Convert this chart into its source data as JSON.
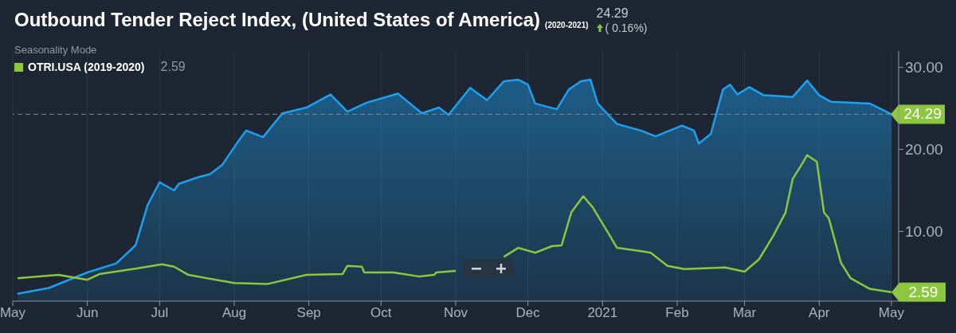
{
  "chart_data": {
    "type": "line",
    "title": "Outbound Tender Reject Index, (United States of America)",
    "subtitle": "Seasonality Mode",
    "annotations": [
      "(2020-2021)",
      "24.29",
      "( 0.16%)",
      "2.59",
      {
        "text": "2.59",
        "x": "2021-05-01",
        "y": 2.59
      }
    ],
    "xlim": [
      "2020-05-01",
      "2021-05-04"
    ],
    "xticks": [
      {
        "value": "2020-05-01",
        "label": "May"
      },
      {
        "value": "2020-06-01",
        "label": "Jun"
      },
      {
        "value": "2020-07-01",
        "label": "Jul"
      },
      {
        "value": "2020-08-01",
        "label": "Aug"
      },
      {
        "value": "2020-09-01",
        "label": "Sep"
      },
      {
        "value": "2020-10-01",
        "label": "Oct"
      },
      {
        "value": "2020-11-01",
        "label": "Nov"
      },
      {
        "value": "2020-12-01",
        "label": "Dec"
      },
      {
        "value": "2021-01-01",
        "label": "2021"
      },
      {
        "value": "2021-02-01",
        "label": "Feb"
      },
      {
        "value": "2021-03-01",
        "label": "Mar"
      },
      {
        "value": "2021-04-01",
        "label": "Apr"
      },
      {
        "value": "2021-05-01",
        "label": "May"
      }
    ],
    "ylim": [
      1.5,
      32
    ],
    "yticks": [
      {
        "value": 10,
        "label": "10.00"
      },
      {
        "value": 20,
        "label": "20.00"
      },
      {
        "value": 30,
        "label": "30.00"
      }
    ],
    "grid": "x",
    "legend": "top left",
    "marker": "none",
    "line_style": "solid",
    "ref_lines": [
      {
        "axis": "y",
        "value": 24.29,
        "label": "24.29",
        "color": "#7d8a96",
        "line_style": "dashed"
      }
    ],
    "series": [
      {
        "type": "area",
        "color": "#1ea0f0",
        "x": [
          "2020-05-03",
          "2020-05-16",
          "2020-06-01",
          "2020-06-13",
          "2020-06-21",
          "2020-06-26",
          "2020-07-01",
          "2020-07-07",
          "2020-07-09",
          "2020-07-17",
          "2020-07-22",
          "2020-07-27",
          "2020-08-02",
          "2020-08-06",
          "2020-08-13",
          "2020-08-21",
          "2020-08-31",
          "2020-09-10",
          "2020-09-17",
          "2020-09-25",
          "2020-10-08",
          "2020-10-18",
          "2020-10-25",
          "2020-10-29",
          "2020-11-07",
          "2020-11-14",
          "2020-11-21",
          "2020-11-27",
          "2020-12-01",
          "2020-12-04",
          "2020-12-13",
          "2020-12-18",
          "2020-12-23",
          "2020-12-27",
          "2020-12-30",
          "2021-01-07",
          "2021-01-17",
          "2021-01-23",
          "2021-02-03",
          "2021-02-08",
          "2021-02-10",
          "2021-02-15",
          "2021-02-20",
          "2021-02-23",
          "2021-02-26",
          "2021-03-03",
          "2021-03-09",
          "2021-03-21",
          "2021-03-27",
          "2021-04-01",
          "2021-04-06",
          "2021-04-22",
          "2021-05-01"
        ],
        "values": [
          2.4,
          3.1,
          5.0,
          6.1,
          8.3,
          13.2,
          16.0,
          15.0,
          15.8,
          16.6,
          17.0,
          18.1,
          20.7,
          22.3,
          21.5,
          24.4,
          25.1,
          26.7,
          24.6,
          25.7,
          26.8,
          24.4,
          25.1,
          24.2,
          27.5,
          26.0,
          28.3,
          28.5,
          27.9,
          25.6,
          24.9,
          27.3,
          28.3,
          28.5,
          25.6,
          23.1,
          22.3,
          21.6,
          22.9,
          22.3,
          20.7,
          21.9,
          27.3,
          27.9,
          26.7,
          27.6,
          26.6,
          26.4,
          28.4,
          26.6,
          25.8,
          25.6,
          24.29
        ]
      },
      {
        "type": "line",
        "name": "OTRI.USA (2019-2020)",
        "color": "#8dc63f",
        "x": [
          "2020-05-03",
          "2020-05-20",
          "2020-06-01",
          "2020-06-06",
          "2020-06-22",
          "2020-07-02",
          "2020-07-07",
          "2020-07-13",
          "2020-08-01",
          "2020-08-15",
          "2020-08-31",
          "2020-09-15",
          "2020-09-17",
          "2020-09-23",
          "2020-09-24",
          "2020-10-06",
          "2020-10-17",
          "2020-10-23",
          "2020-10-24",
          "2020-11-01",
          "2020-11-10",
          "2020-11-21",
          "2020-11-27",
          "2020-12-04",
          "2020-12-11",
          "2020-12-15",
          "2020-12-19",
          "2020-12-24",
          "2020-12-28",
          "2021-01-04",
          "2021-01-07",
          "2021-01-17",
          "2021-01-21",
          "2021-01-28",
          "2021-02-04",
          "2021-02-21",
          "2021-03-01",
          "2021-03-07",
          "2021-03-13",
          "2021-03-18",
          "2021-03-21",
          "2021-03-25",
          "2021-03-27",
          "2021-03-31",
          "2021-04-03",
          "2021-04-05",
          "2021-04-10",
          "2021-04-14",
          "2021-04-22",
          "2021-05-01"
        ],
        "values": [
          4.3,
          4.7,
          4.1,
          4.8,
          5.5,
          6.0,
          5.7,
          4.7,
          3.7,
          3.6,
          4.7,
          4.8,
          5.8,
          5.7,
          5.0,
          5.0,
          4.5,
          4.7,
          5.0,
          5.2,
          null,
          6.9,
          8.0,
          7.4,
          8.2,
          8.3,
          12.3,
          14.3,
          12.9,
          9.5,
          8.0,
          7.6,
          7.4,
          5.8,
          5.4,
          5.6,
          5.1,
          6.6,
          9.5,
          12.3,
          16.4,
          18.3,
          19.3,
          18.5,
          12.3,
          11.6,
          6.2,
          4.3,
          3.0,
          2.59
        ]
      }
    ]
  }
}
